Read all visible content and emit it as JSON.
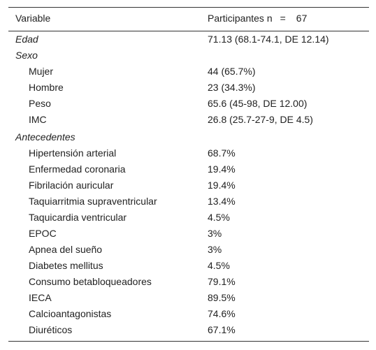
{
  "header": {
    "variable": "Variable",
    "participants": "Participantes n",
    "equals": "=",
    "n": "67"
  },
  "table": {
    "rows": [
      {
        "label": "Edad",
        "value": "71.13 (68.1-74.1, DE 12.14)",
        "italic": true,
        "indent": 0
      },
      {
        "label": "Sexo",
        "italic": true,
        "indent": 0
      },
      {
        "label": "Mujer",
        "value": "44 (65.7%)",
        "italic": false,
        "indent": 1
      },
      {
        "label": "Hombre",
        "value": "23 (34.3%)",
        "italic": false,
        "indent": 1
      },
      {
        "label": "Peso",
        "value": "65.6 (45-98, DE 12.00)",
        "italic": false,
        "indent": 1
      },
      {
        "label": "IMC",
        "value": "26.8 (25.7-27-9, DE 4.5)",
        "italic": false,
        "indent": 1
      },
      {
        "label": "Antecedentes",
        "italic": true,
        "indent": 0
      },
      {
        "label": "Hipertensión arterial",
        "value": "68.7%",
        "italic": false,
        "indent": 1
      },
      {
        "label": "Enfermedad coronaria",
        "value": "19.4%",
        "italic": false,
        "indent": 1
      },
      {
        "label": "Fibrilación auricular",
        "value": "19.4%",
        "italic": false,
        "indent": 1
      },
      {
        "label": "Taquiarritmia supraventricular",
        "value": "13.4%",
        "italic": false,
        "indent": 1
      },
      {
        "label": "Taquicardia ventricular",
        "value": "4.5%",
        "italic": false,
        "indent": 1
      },
      {
        "label": "EPOC",
        "value": "3%",
        "italic": false,
        "indent": 1
      },
      {
        "label": "Apnea del sueño",
        "value": "3%",
        "italic": false,
        "indent": 1
      },
      {
        "label": "Diabetes mellitus",
        "value": "4.5%",
        "italic": false,
        "indent": 1
      },
      {
        "label": "Consumo betabloqueadores",
        "value": "79.1%",
        "italic": false,
        "indent": 1
      },
      {
        "label": "IECA",
        "value": "89.5%",
        "italic": false,
        "indent": 1
      },
      {
        "label": "Calcioantagonistas",
        "value": "74.6%",
        "italic": false,
        "indent": 1
      },
      {
        "label": "Diuréticos",
        "value": "67.1%",
        "italic": false,
        "indent": 1
      }
    ]
  }
}
